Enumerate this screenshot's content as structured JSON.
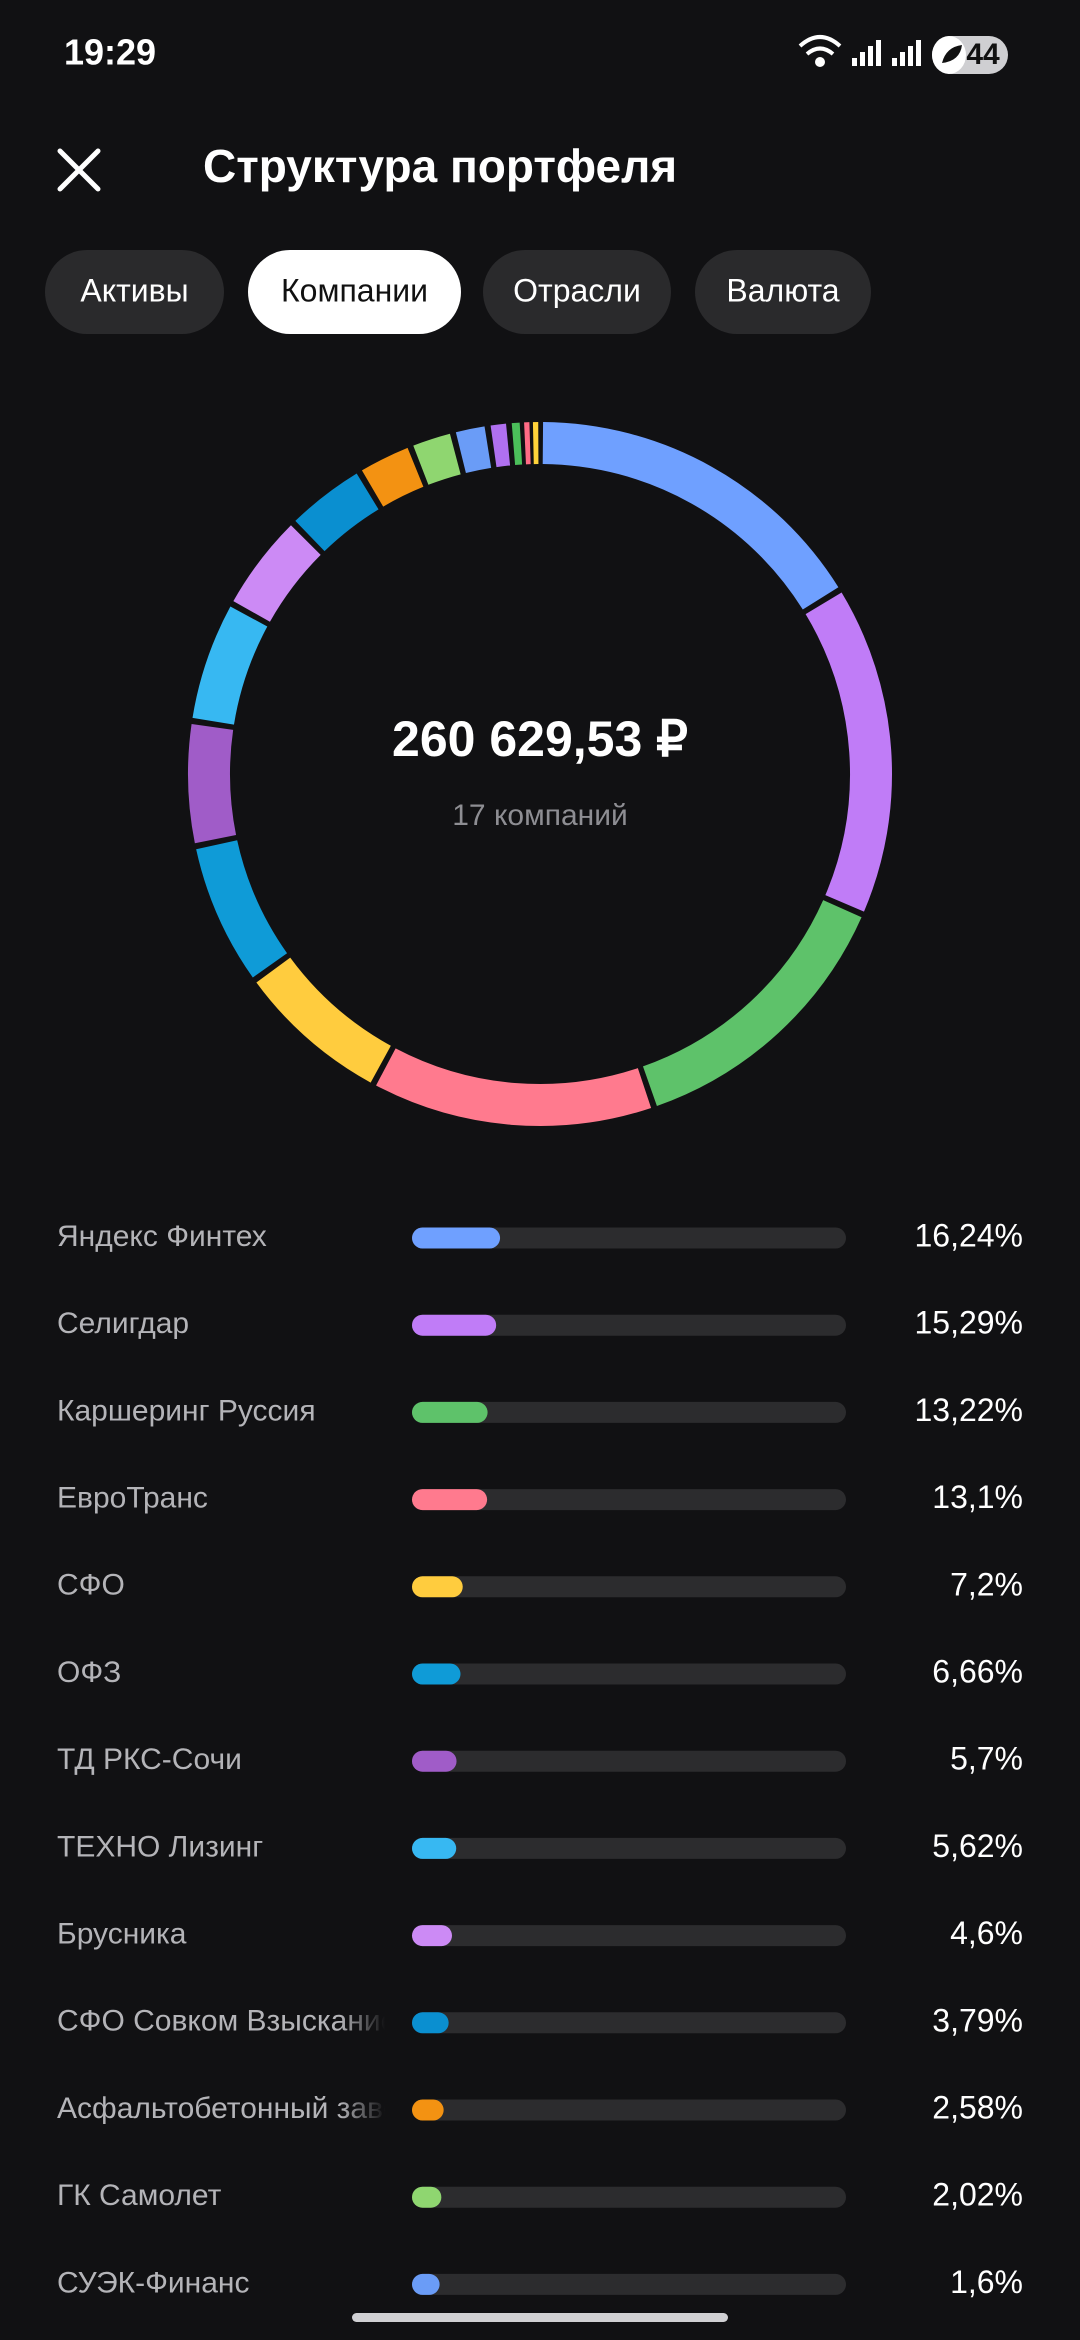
{
  "status_bar": {
    "time": "19:29",
    "battery": "44"
  },
  "header": {
    "title": "Структура портфеля"
  },
  "tabs": [
    "Активы",
    "Компании",
    "Отрасли",
    "Валюта"
  ],
  "selected_tab": 1,
  "chart_data": {
    "type": "donut",
    "center_value": "260 629,53 ₽",
    "center_label": "17 компаний",
    "categories": [
      "Яндекс Финтех",
      "Селигдар",
      "Каршеринг Руссия",
      "ЕвроТранс",
      "СФО",
      "ОФЗ",
      "ТД РКС-Сочи",
      "ТЕХНО Лизинг",
      "Брусника",
      "СФО Совком Взыскание",
      "Асфальтобетонный завод",
      "ГК Самолет",
      "СУЭК-Финанс",
      null,
      null,
      null,
      null
    ],
    "values": [
      16.24,
      15.29,
      13.22,
      13.1,
      7.2,
      6.66,
      5.7,
      5.62,
      4.6,
      3.79,
      2.58,
      2.02,
      1.6,
      0.98,
      0.6,
      0.4,
      0.4
    ],
    "value_labels": [
      "16,24%",
      "15,29%",
      "13,22%",
      "13,1%",
      "7,2%",
      "6,66%",
      "5,7%",
      "5,62%",
      "4,6%",
      "3,79%",
      "2,58%",
      "2,02%",
      "1,6%",
      null,
      null,
      null,
      null
    ],
    "colors": [
      "#6fa0ff",
      "#c07cf7",
      "#5ec26a",
      "#ff7a8e",
      "#ffcc3e",
      "#0f9bd7",
      "#a05cc8",
      "#37b8f2",
      "#cc8af5",
      "#0a8fd0",
      "#f39212",
      "#8fd670",
      "#6a9cf7",
      "#b070f0",
      "#4bbf5a",
      "#ff6b85",
      "#ffd33a"
    ],
    "xlim": [
      0,
      100
    ]
  }
}
